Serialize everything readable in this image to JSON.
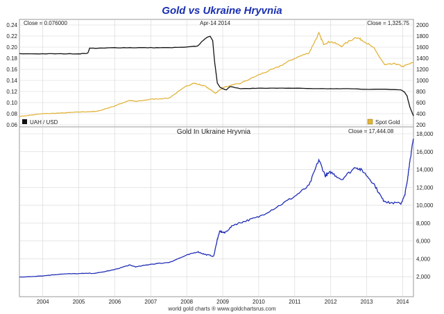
{
  "title": "Gold vs Ukraine Hryvnia",
  "date_label": "Apr-14  2014",
  "footer": "world gold charts ® www.goldchartsrus.com",
  "colors": {
    "title": "#1a2fb0",
    "uah": "#111111",
    "gold": "#e1b43a",
    "gold_uah": "#1f2cb5",
    "grid": "#d6d6d6",
    "frame": "#999999"
  },
  "chart_data": [
    {
      "type": "line",
      "title": "",
      "close_left": "Close = 0.076000",
      "close_right": "Close = 1,325.75",
      "left_axis_ticks": [
        "0.24",
        "0.22",
        "0.20",
        "0.18",
        "0.16",
        "0.14",
        "0.12",
        "0.10",
        "0.08",
        "0.06"
      ],
      "right_axis_ticks": [
        "2000",
        "1800",
        "1600",
        "1400",
        "1200",
        "1000",
        "800",
        "600",
        "400",
        "200"
      ],
      "ylim_left": [
        0.06,
        0.24
      ],
      "ylim_right": [
        200,
        2000
      ],
      "xlim": [
        2003.35,
        2014.3
      ],
      "grid": true,
      "legend": [
        {
          "label": "UAH / USD",
          "color": "#111111",
          "position": "bottom-left"
        },
        {
          "label": "Spot Gold",
          "color": "#e1b43a",
          "position": "bottom-right"
        }
      ],
      "series": [
        {
          "name": "UAH / USD",
          "axis": "left",
          "x": [
            2003.35,
            2004.0,
            2004.5,
            2005.0,
            2005.25,
            2005.3,
            2005.6,
            2006.0,
            2006.5,
            2007.0,
            2007.5,
            2008.0,
            2008.3,
            2008.5,
            2008.65,
            2008.72,
            2008.78,
            2008.85,
            2008.92,
            2009.0,
            2009.1,
            2009.2,
            2009.5,
            2010.0,
            2010.5,
            2011.0,
            2011.5,
            2012.0,
            2012.5,
            2013.0,
            2013.5,
            2013.95,
            2014.05,
            2014.12,
            2014.2,
            2014.3
          ],
          "values": [
            0.188,
            0.188,
            0.188,
            0.188,
            0.189,
            0.198,
            0.198,
            0.199,
            0.199,
            0.199,
            0.199,
            0.2,
            0.202,
            0.215,
            0.22,
            0.212,
            0.17,
            0.135,
            0.128,
            0.125,
            0.123,
            0.129,
            0.125,
            0.126,
            0.126,
            0.126,
            0.125,
            0.125,
            0.125,
            0.124,
            0.124,
            0.123,
            0.119,
            0.112,
            0.092,
            0.076
          ]
        },
        {
          "name": "Spot Gold",
          "axis": "right",
          "x": [
            2003.35,
            2004.0,
            2004.5,
            2005.0,
            2005.5,
            2006.0,
            2006.4,
            2006.6,
            2007.0,
            2007.5,
            2008.0,
            2008.2,
            2008.5,
            2008.8,
            2009.0,
            2009.5,
            2010.0,
            2010.5,
            2011.0,
            2011.4,
            2011.67,
            2011.8,
            2012.0,
            2012.3,
            2012.7,
            2012.9,
            2013.2,
            2013.5,
            2013.8,
            2014.0,
            2014.3
          ],
          "values": [
            350,
            400,
            410,
            430,
            440,
            540,
            640,
            620,
            660,
            680,
            900,
            950,
            900,
            770,
            870,
            950,
            1100,
            1230,
            1400,
            1500,
            1850,
            1660,
            1700,
            1620,
            1780,
            1720,
            1580,
            1280,
            1300,
            1250,
            1325
          ]
        }
      ]
    },
    {
      "type": "line",
      "title": "Gold In Ukraine Hryvnia",
      "close_label": "Close = 17,444.08",
      "right_axis_ticks": [
        "18,000",
        "16,000",
        "14,000",
        "12,000",
        "10,000",
        "8,000",
        "6,000",
        "4,000",
        "2,000"
      ],
      "ylim": [
        0,
        18000
      ],
      "xlim": [
        2003.35,
        2014.3
      ],
      "x_tick_labels": [
        "2004",
        "2005",
        "2006",
        "2007",
        "2008",
        "2009",
        "2010",
        "2011",
        "2012",
        "2013",
        "2014"
      ],
      "grid": true,
      "series": [
        {
          "name": "Gold In Ukraine Hryvnia",
          "x": [
            2003.35,
            2004.0,
            2004.5,
            2005.0,
            2005.5,
            2006.0,
            2006.4,
            2006.6,
            2007.0,
            2007.5,
            2008.0,
            2008.3,
            2008.5,
            2008.75,
            2008.85,
            2008.92,
            2009.05,
            2009.3,
            2009.6,
            2010.0,
            2010.5,
            2011.0,
            2011.4,
            2011.67,
            2011.85,
            2012.0,
            2012.3,
            2012.7,
            2012.9,
            2013.2,
            2013.45,
            2013.6,
            2013.95,
            2014.05,
            2014.12,
            2014.2,
            2014.3
          ],
          "values": [
            1950,
            2100,
            2300,
            2350,
            2400,
            2800,
            3300,
            3100,
            3400,
            3600,
            4400,
            4800,
            4500,
            4300,
            6200,
            7100,
            6900,
            7800,
            8200,
            8700,
            9800,
            11000,
            12200,
            15100,
            13300,
            13700,
            12900,
            14300,
            13800,
            12400,
            10600,
            10300,
            10200,
            11000,
            12500,
            15000,
            17444
          ]
        }
      ]
    }
  ]
}
